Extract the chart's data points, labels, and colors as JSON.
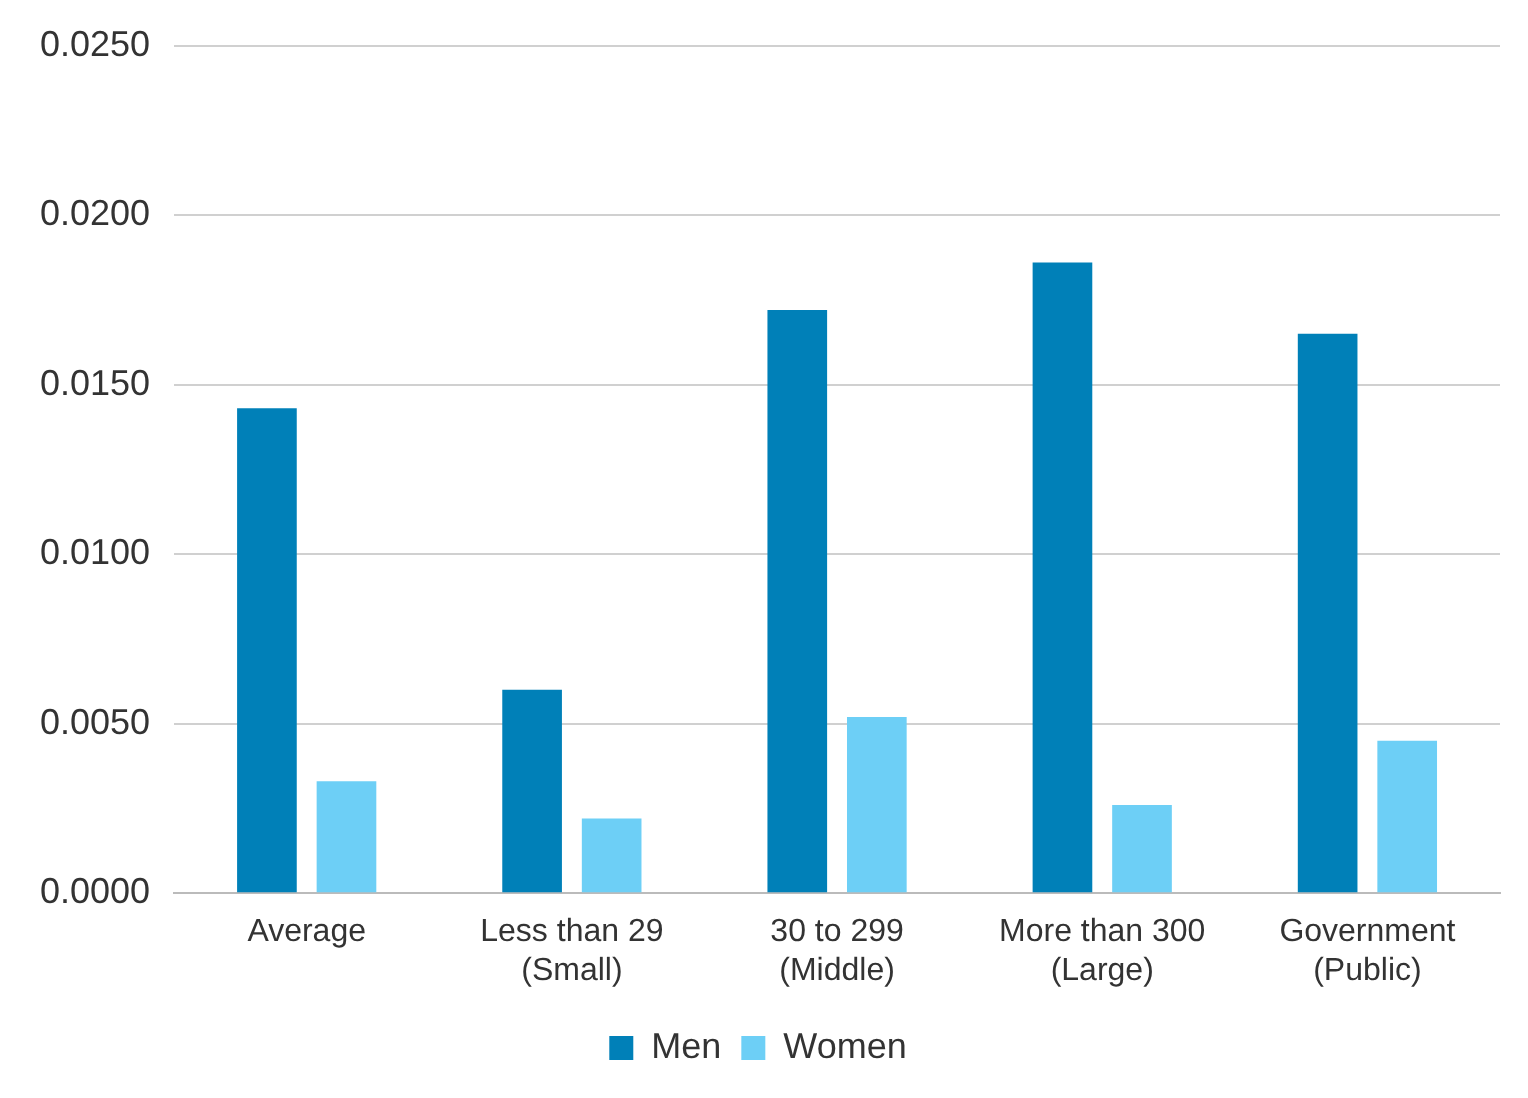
{
  "chart_data": {
    "type": "bar",
    "categories": [
      "Average",
      "Less than 29\n(Small)",
      "30 to 299\n(Middle)",
      "More than 300\n(Large)",
      "Government\n(Public)"
    ],
    "series": [
      {
        "name": "Men",
        "color": "#0080b8",
        "values": [
          0.0143,
          0.006,
          0.0172,
          0.0186,
          0.0165
        ]
      },
      {
        "name": "Women",
        "color": "#6dcff6",
        "values": [
          0.0033,
          0.0022,
          0.0052,
          0.0026,
          0.0045
        ]
      }
    ],
    "ylim": [
      0,
      0.025
    ],
    "yticks": [
      {
        "value": 0,
        "label": "0.0000"
      },
      {
        "value": 0.005,
        "label": "0.0050"
      },
      {
        "value": 0.01,
        "label": "0.0100"
      },
      {
        "value": 0.015,
        "label": "0.0150"
      },
      {
        "value": 0.02,
        "label": "0.0200"
      },
      {
        "value": 0.025,
        "label": "0.0250"
      }
    ],
    "grid": "y",
    "legend": "bottom"
  }
}
